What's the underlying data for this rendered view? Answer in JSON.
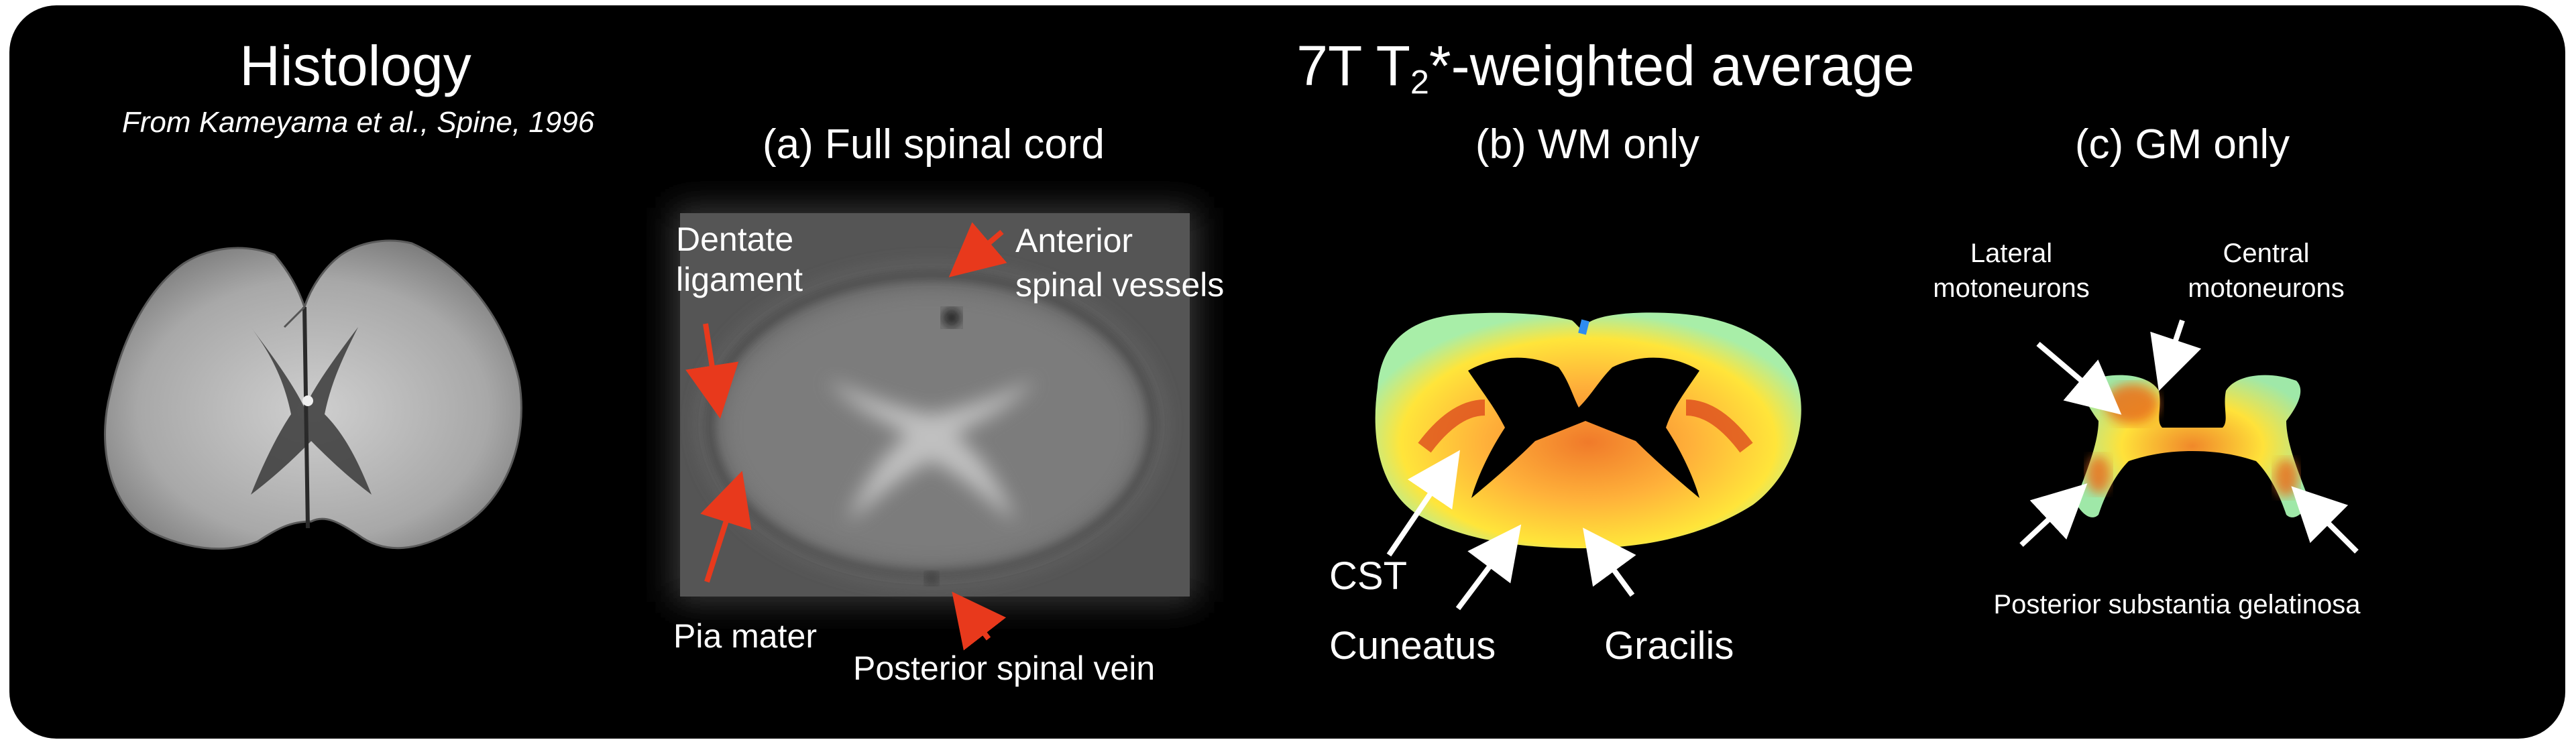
{
  "histology": {
    "title": "Histology",
    "citation": "From Kameyama et al., Spine, 1996"
  },
  "main_title": {
    "prefix": "7T T",
    "subscript": "2",
    "suffix": "*-weighted average"
  },
  "panels": {
    "a": {
      "title": "(a) Full spinal cord",
      "labels": {
        "dentate_line1": "Dentate",
        "dentate_line2": "ligament",
        "anterior_line1": "Anterior",
        "anterior_line2": "spinal vessels",
        "pia_mater": "Pia mater",
        "posterior_vein": "Posterior spinal vein"
      }
    },
    "b": {
      "title": "(b) WM only",
      "labels": {
        "cst": "CST",
        "cuneatus": "Cuneatus",
        "gracilis": "Gracilis"
      }
    },
    "c": {
      "title": "(c) GM only",
      "labels": {
        "lateral_line1": "Lateral",
        "lateral_line2": "motoneurons",
        "central_line1": "Central",
        "central_line2": "motoneurons",
        "posterior_sg": "Posterior substantia gelatinosa"
      }
    }
  },
  "colors": {
    "background": "#000000",
    "text": "#ffffff",
    "arrow_red": "#e8391c",
    "arrow_white": "#ffffff",
    "heat_low": "#9fe8a8",
    "heat_mid": "#ffe23a",
    "heat_high": "#e8501e"
  }
}
